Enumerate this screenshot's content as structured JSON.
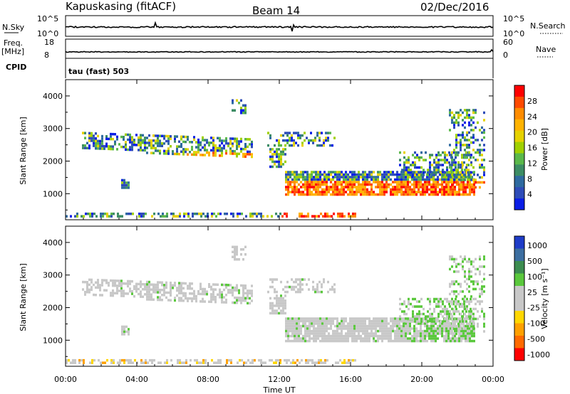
{
  "header": {
    "station": "Kapuskasing (fitACF)",
    "beam": "Beam 14",
    "date": "02/Dec/2016"
  },
  "top_panels": {
    "nsky_label": "N.Sky",
    "nsky_ticks": [
      "10^5",
      "10^0"
    ],
    "nsearch_label": "N.Search",
    "nsearch_ticks": [
      "10^5",
      "10^0"
    ],
    "freq_label_1": "Freq.",
    "freq_label_2": "[MHz]",
    "freq_ticks": [
      "18",
      "8"
    ],
    "nave_label": "Nave",
    "nave_ticks": [
      "60",
      "0"
    ],
    "cpid_label": "CPID",
    "cpid_value": "tau (fast) 503"
  },
  "chart_data": [
    {
      "type": "heatmap",
      "title": "",
      "ylabel": "Slant Range [km]",
      "yticks": [
        "4000",
        "3000",
        "2000",
        "1000"
      ],
      "ylim": [
        200,
        4500
      ],
      "colorbar_label": "Power [dB]",
      "colorbar_ticks": [
        "28",
        "24",
        "20",
        "16",
        "12",
        "8",
        "4"
      ],
      "colorbar_colors": [
        "#ff0000",
        "#ff4a00",
        "#ff8c00",
        "#ffb300",
        "#e6d200",
        "#a0d000",
        "#5ab84a",
        "#3c8c64",
        "#2e6aa0",
        "#2e4cb8",
        "#0a1ee6"
      ]
    },
    {
      "type": "heatmap",
      "title": "",
      "ylabel": "Slant Range [km]",
      "yticks": [
        "4000",
        "3000",
        "2000",
        "1000"
      ],
      "ylim": [
        200,
        4500
      ],
      "colorbar_label": "Velocity [m s⁻¹]",
      "colorbar_ticks": [
        "1000",
        "500",
        "100",
        "25",
        "-25",
        "-100",
        "-500",
        "-1000"
      ],
      "colorbar_colors": [
        "#1e3cc8",
        "#3c6ea0",
        "#3c8c50",
        "#5ac83c",
        "#c8c8c8",
        "#c8c8c8",
        "#ffd700",
        "#ffa000",
        "#ff6a00",
        "#ff0000"
      ]
    }
  ],
  "xaxis": {
    "label": "Time UT",
    "ticks": [
      "00:00",
      "04:00",
      "08:00",
      "12:00",
      "16:00",
      "20:00",
      "00:00"
    ]
  }
}
